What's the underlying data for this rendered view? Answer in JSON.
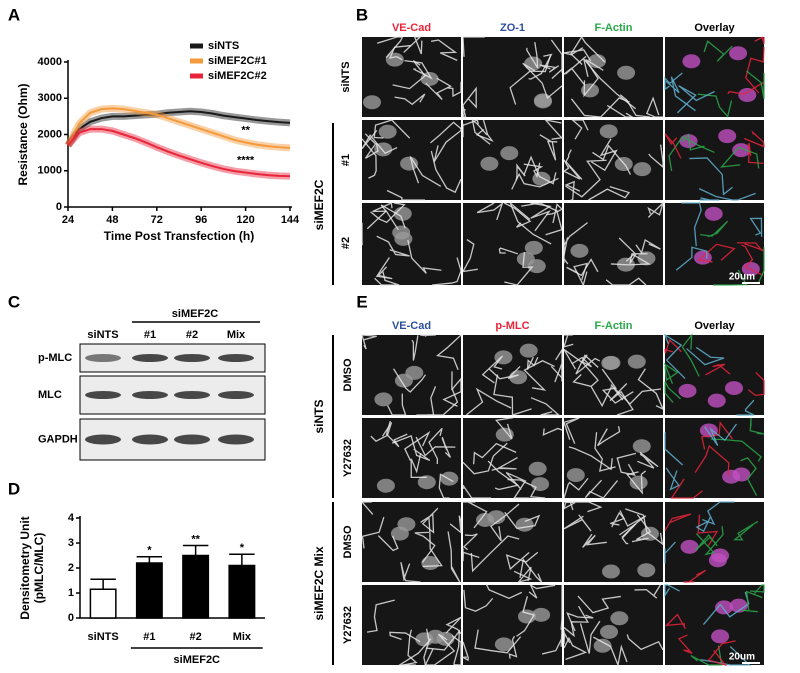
{
  "panel_labels": [
    "A",
    "B",
    "C",
    "D",
    "E"
  ],
  "chart_data": [
    {
      "type": "line",
      "y_label": "Resistance (Ohm)",
      "x_label": "Time Post Transfection (h)",
      "x": [
        24,
        30,
        36,
        42,
        48,
        54,
        60,
        66,
        72,
        78,
        84,
        90,
        96,
        102,
        108,
        114,
        120,
        126,
        132,
        138,
        144
      ],
      "xlim": [
        24,
        144
      ],
      "xticks": [
        24,
        48,
        72,
        96,
        120,
        144
      ],
      "ylim": [
        0,
        4000
      ],
      "yticks": [
        0,
        1000,
        2000,
        3000,
        4000
      ],
      "legend": "upper right",
      "series": [
        {
          "name": "siNTS",
          "color": "#1a1a1a",
          "values": [
            1700,
            2150,
            2350,
            2450,
            2500,
            2500,
            2520,
            2540,
            2560,
            2600,
            2620,
            2640,
            2620,
            2580,
            2520,
            2480,
            2440,
            2400,
            2370,
            2340,
            2320
          ]
        },
        {
          "name": "siMEF2C#1",
          "color": "#f39a3c",
          "annotation": "**",
          "values": [
            1700,
            2300,
            2600,
            2700,
            2720,
            2700,
            2650,
            2600,
            2550,
            2450,
            2350,
            2250,
            2150,
            2050,
            1950,
            1850,
            1780,
            1720,
            1680,
            1650,
            1630
          ]
        },
        {
          "name": "siMEF2C#2",
          "color": "#e8253a",
          "annotation": "****",
          "values": [
            1700,
            2050,
            2150,
            2150,
            2100,
            2000,
            1900,
            1780,
            1650,
            1530,
            1420,
            1320,
            1220,
            1130,
            1050,
            990,
            950,
            910,
            880,
            860,
            850
          ]
        }
      ]
    },
    {
      "type": "bar",
      "y_label": [
        "Densitometry Unit",
        "(pMLC/MLC)"
      ],
      "categories": [
        "siNTS",
        "#1",
        "#2",
        "Mix"
      ],
      "values": [
        1.15,
        2.2,
        2.5,
        2.1
      ],
      "errors": [
        0.4,
        0.25,
        0.4,
        0.45
      ],
      "colors": [
        "#ffffff",
        "#000000",
        "#000000",
        "#000000"
      ],
      "significance": [
        null,
        "*",
        "**",
        "*"
      ],
      "group_label": "siMEF2C",
      "ylim": [
        0,
        4
      ],
      "yticks": [
        0,
        1,
        2,
        3,
        4
      ]
    }
  ],
  "panel_b": {
    "columns": [
      {
        "label": "VE-Cad",
        "color": "#e8253a"
      },
      {
        "label": "ZO-1",
        "color": "#2e4f9e"
      },
      {
        "label": "F-Actin",
        "color": "#2aa84a"
      },
      {
        "label": "Overlay",
        "color": "#000000"
      }
    ],
    "first_row": "siNTS",
    "group": "siMEF2C",
    "group_rows": [
      "#1",
      "#2"
    ],
    "scale_bar": "20um"
  },
  "panel_c": {
    "group": "siMEF2C",
    "lanes": [
      "siNTS",
      "#1",
      "#2",
      "Mix"
    ],
    "rows": [
      "p-MLC",
      "MLC",
      "GAPDH"
    ]
  },
  "panel_e": {
    "columns": [
      {
        "label": "VE-Cad",
        "color": "#2e4f9e"
      },
      {
        "label": "p-MLC",
        "color": "#e8253a"
      },
      {
        "label": "F-Actin",
        "color": "#2aa84a"
      },
      {
        "label": "Overlay",
        "color": "#000000"
      }
    ],
    "groups": [
      "siNTS",
      "siMEF2C Mix"
    ],
    "treatments": [
      "DMSO",
      "Y27632"
    ],
    "scale_bar": "20um"
  }
}
